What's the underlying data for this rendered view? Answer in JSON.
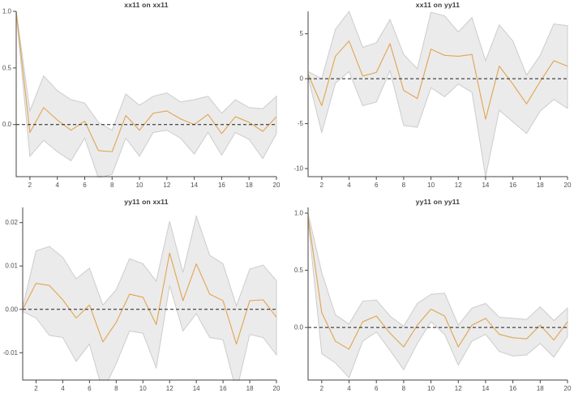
{
  "colors": {
    "background": "#ffffff",
    "line": "#e2a450",
    "band_fill": "#ebebeb",
    "band_stroke": "#cccccc",
    "axis": "#454545",
    "zero_line": "#1c1c1c",
    "tick_text": "#4f4f4f",
    "title_text": "#3a3a3a"
  },
  "chart_data": [
    {
      "type": "line",
      "title": "xx11 on xx11",
      "x": [
        1,
        2,
        3,
        4,
        5,
        6,
        7,
        8,
        9,
        10,
        11,
        12,
        13,
        14,
        15,
        16,
        17,
        18,
        19,
        20
      ],
      "series": [
        {
          "name": "impulse-response",
          "values": [
            1.0,
            -0.07,
            0.15,
            0.04,
            -0.05,
            0.03,
            -0.23,
            -0.24,
            0.08,
            -0.05,
            0.1,
            0.12,
            0.05,
            0.0,
            0.09,
            -0.08,
            0.07,
            0.02,
            -0.06,
            0.07
          ]
        },
        {
          "name": "ci-upper",
          "values": [
            1.0,
            0.12,
            0.43,
            0.3,
            0.22,
            0.19,
            0.02,
            -0.05,
            0.27,
            0.17,
            0.25,
            0.28,
            0.2,
            0.22,
            0.25,
            0.1,
            0.22,
            0.15,
            0.14,
            0.25
          ]
        },
        {
          "name": "ci-lower",
          "values": [
            0.98,
            -0.28,
            -0.14,
            -0.24,
            -0.32,
            -0.12,
            -0.47,
            -0.44,
            -0.12,
            -0.28,
            -0.07,
            -0.05,
            -0.12,
            -0.26,
            -0.07,
            -0.27,
            -0.07,
            -0.13,
            -0.3,
            -0.08
          ]
        }
      ],
      "ylim": [
        -0.46,
        1.0
      ],
      "yticks": [
        0.0,
        0.5,
        1.0
      ],
      "ytick_labels": [
        "0.0",
        "0.5",
        "1.0"
      ],
      "xticks": [
        2,
        4,
        6,
        8,
        10,
        12,
        14,
        16,
        18,
        20
      ],
      "zero_line": true,
      "grid": false,
      "legend": "none"
    },
    {
      "type": "line",
      "title": "xx11 on yy11",
      "x": [
        1,
        2,
        3,
        4,
        5,
        6,
        7,
        8,
        9,
        10,
        11,
        12,
        13,
        14,
        15,
        16,
        17,
        18,
        19,
        20
      ],
      "series": [
        {
          "name": "impulse-response",
          "values": [
            0.5,
            -3.0,
            2.5,
            4.2,
            0.3,
            0.7,
            3.9,
            -1.3,
            -2.2,
            3.3,
            2.6,
            2.5,
            2.7,
            -4.5,
            1.4,
            -0.6,
            -2.8,
            -0.3,
            2.0,
            1.4
          ]
        },
        {
          "name": "ci-upper",
          "values": [
            0.8,
            0.0,
            5.5,
            7.5,
            3.5,
            4.0,
            6.6,
            2.7,
            1.1,
            7.4,
            7.0,
            5.2,
            6.8,
            2.0,
            6.0,
            4.2,
            0.4,
            2.6,
            6.1,
            5.9
          ]
        },
        {
          "name": "ci-lower",
          "values": [
            0.15,
            -6.0,
            -0.5,
            0.8,
            -3.0,
            -2.6,
            0.9,
            -5.2,
            -5.4,
            -1.0,
            -2.0,
            -0.6,
            -1.5,
            -10.9,
            -3.5,
            -4.8,
            -6.1,
            -3.6,
            -2.3,
            -3.3
          ]
        }
      ],
      "ylim": [
        -10.9,
        7.5
      ],
      "yticks": [
        -10,
        -5,
        0,
        5
      ],
      "ytick_labels": [
        "-10",
        "-5",
        "0",
        "5"
      ],
      "xticks": [
        2,
        4,
        6,
        8,
        10,
        12,
        14,
        16,
        18,
        20
      ],
      "zero_line": true,
      "grid": false,
      "legend": "none"
    },
    {
      "type": "line",
      "title": "yy11 on xx11",
      "x": [
        1,
        2,
        3,
        4,
        5,
        6,
        7,
        8,
        9,
        10,
        11,
        12,
        13,
        14,
        15,
        16,
        17,
        18,
        19,
        20
      ],
      "series": [
        {
          "name": "impulse-response",
          "values": [
            0.0,
            0.006,
            0.0055,
            0.0022,
            -0.002,
            0.001,
            -0.0075,
            -0.003,
            0.0035,
            0.0028,
            -0.0035,
            0.013,
            0.002,
            0.0105,
            0.0035,
            0.002,
            -0.008,
            0.002,
            0.0022,
            -0.0018
          ]
        },
        {
          "name": "ci-upper",
          "values": [
            0.0005,
            0.0135,
            0.0145,
            0.012,
            0.007,
            0.0095,
            0.001,
            0.0045,
            0.0117,
            0.0105,
            0.0065,
            0.0203,
            0.0085,
            0.0215,
            0.0125,
            0.0105,
            0.0008,
            0.0093,
            0.0102,
            0.0066
          ]
        },
        {
          "name": "ci-lower",
          "values": [
            -0.0005,
            -0.002,
            -0.006,
            -0.0065,
            -0.012,
            -0.008,
            -0.019,
            -0.0125,
            -0.005,
            -0.0055,
            -0.0135,
            0.0055,
            -0.005,
            -0.001,
            -0.0065,
            -0.007,
            -0.019,
            -0.0058,
            -0.0065,
            -0.0105
          ]
        }
      ],
      "ylim": [
        -0.0163,
        0.0235
      ],
      "yticks": [
        -0.01,
        0.0,
        0.01,
        0.02
      ],
      "ytick_labels": [
        "-0.01",
        "0.00",
        "0.01",
        "0.02"
      ],
      "xticks": [
        2,
        4,
        6,
        8,
        10,
        12,
        14,
        16,
        18,
        20
      ],
      "zero_line": true,
      "grid": false,
      "legend": "none"
    },
    {
      "type": "line",
      "title": "yy11 on yy11",
      "x": [
        1,
        2,
        3,
        4,
        5,
        6,
        7,
        8,
        9,
        10,
        11,
        12,
        13,
        14,
        15,
        16,
        17,
        18,
        19,
        20
      ],
      "series": [
        {
          "name": "impulse-response",
          "values": [
            0.97,
            0.13,
            -0.12,
            -0.19,
            0.05,
            0.1,
            -0.05,
            -0.17,
            0.02,
            0.16,
            0.1,
            -0.17,
            0.02,
            0.08,
            -0.06,
            -0.09,
            -0.1,
            0.02,
            -0.11,
            0.05
          ]
        },
        {
          "name": "ci-upper",
          "values": [
            1.0,
            0.48,
            0.11,
            0.03,
            0.23,
            0.24,
            0.1,
            0.01,
            0.21,
            0.29,
            0.3,
            0.02,
            0.17,
            0.21,
            0.09,
            0.08,
            0.07,
            0.18,
            0.06,
            0.17
          ]
        },
        {
          "name": "ci-lower",
          "values": [
            0.94,
            -0.23,
            -0.31,
            -0.44,
            -0.12,
            -0.04,
            -0.2,
            -0.37,
            -0.14,
            0.05,
            -0.06,
            -0.33,
            -0.12,
            -0.06,
            -0.21,
            -0.25,
            -0.24,
            -0.14,
            -0.26,
            -0.08
          ]
        }
      ],
      "ylim": [
        -0.46,
        1.05
      ],
      "yticks": [
        0.0,
        0.5,
        1.0
      ],
      "ytick_labels": [
        "0.0",
        "0.5",
        "1.0"
      ],
      "xticks": [
        2,
        4,
        6,
        8,
        10,
        12,
        14,
        16,
        18,
        20
      ],
      "zero_line": true,
      "grid": false,
      "legend": "none"
    }
  ]
}
